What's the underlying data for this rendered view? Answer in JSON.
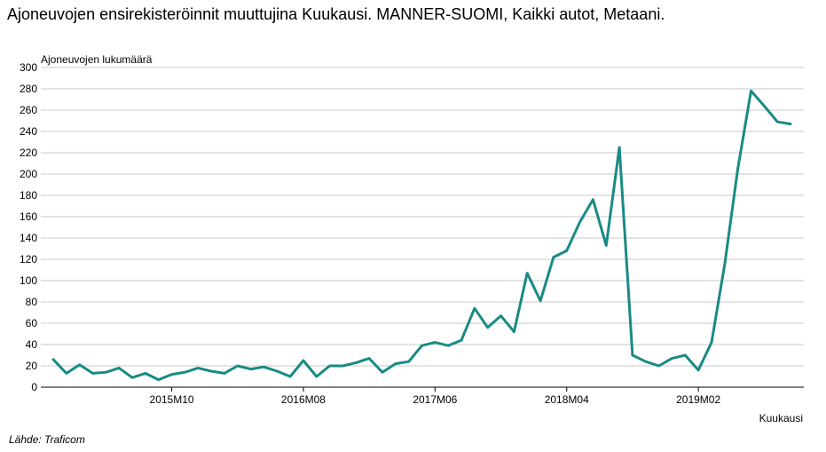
{
  "title": "Ajoneuvojen ensirekisteröinnit muuttujina Kuukausi. MANNER-SUOMI, Kaikki autot, Metaani.",
  "source": "Lähde: Traficom",
  "chart_data": {
    "type": "line",
    "ylabel": "Ajoneuvojen lukumäärä",
    "xlabel": "Kuukausi",
    "ylim": [
      0,
      300
    ],
    "yticks": [
      0,
      20,
      40,
      60,
      80,
      100,
      120,
      140,
      160,
      180,
      200,
      220,
      240,
      260,
      280,
      300
    ],
    "x_tick_labels": [
      "2015M10",
      "2016M08",
      "2017M06",
      "2018M04",
      "2019M02"
    ],
    "x_tick_indices": [
      9,
      19,
      29,
      39,
      49
    ],
    "grid": true,
    "line_color": "#1a8a85",
    "series": [
      {
        "values": [
          26,
          13,
          21,
          13,
          14,
          18,
          9,
          13,
          7,
          12,
          14,
          18,
          15,
          13,
          20,
          17,
          19,
          15,
          10,
          25,
          10,
          20,
          20,
          23,
          27,
          14,
          22,
          24,
          39,
          42,
          39,
          44,
          74,
          56,
          67,
          52,
          107,
          81,
          122,
          128,
          155,
          176,
          133,
          225,
          30,
          24,
          20,
          27,
          30,
          16,
          42,
          115,
          205,
          278,
          264,
          249,
          247
        ]
      }
    ]
  }
}
